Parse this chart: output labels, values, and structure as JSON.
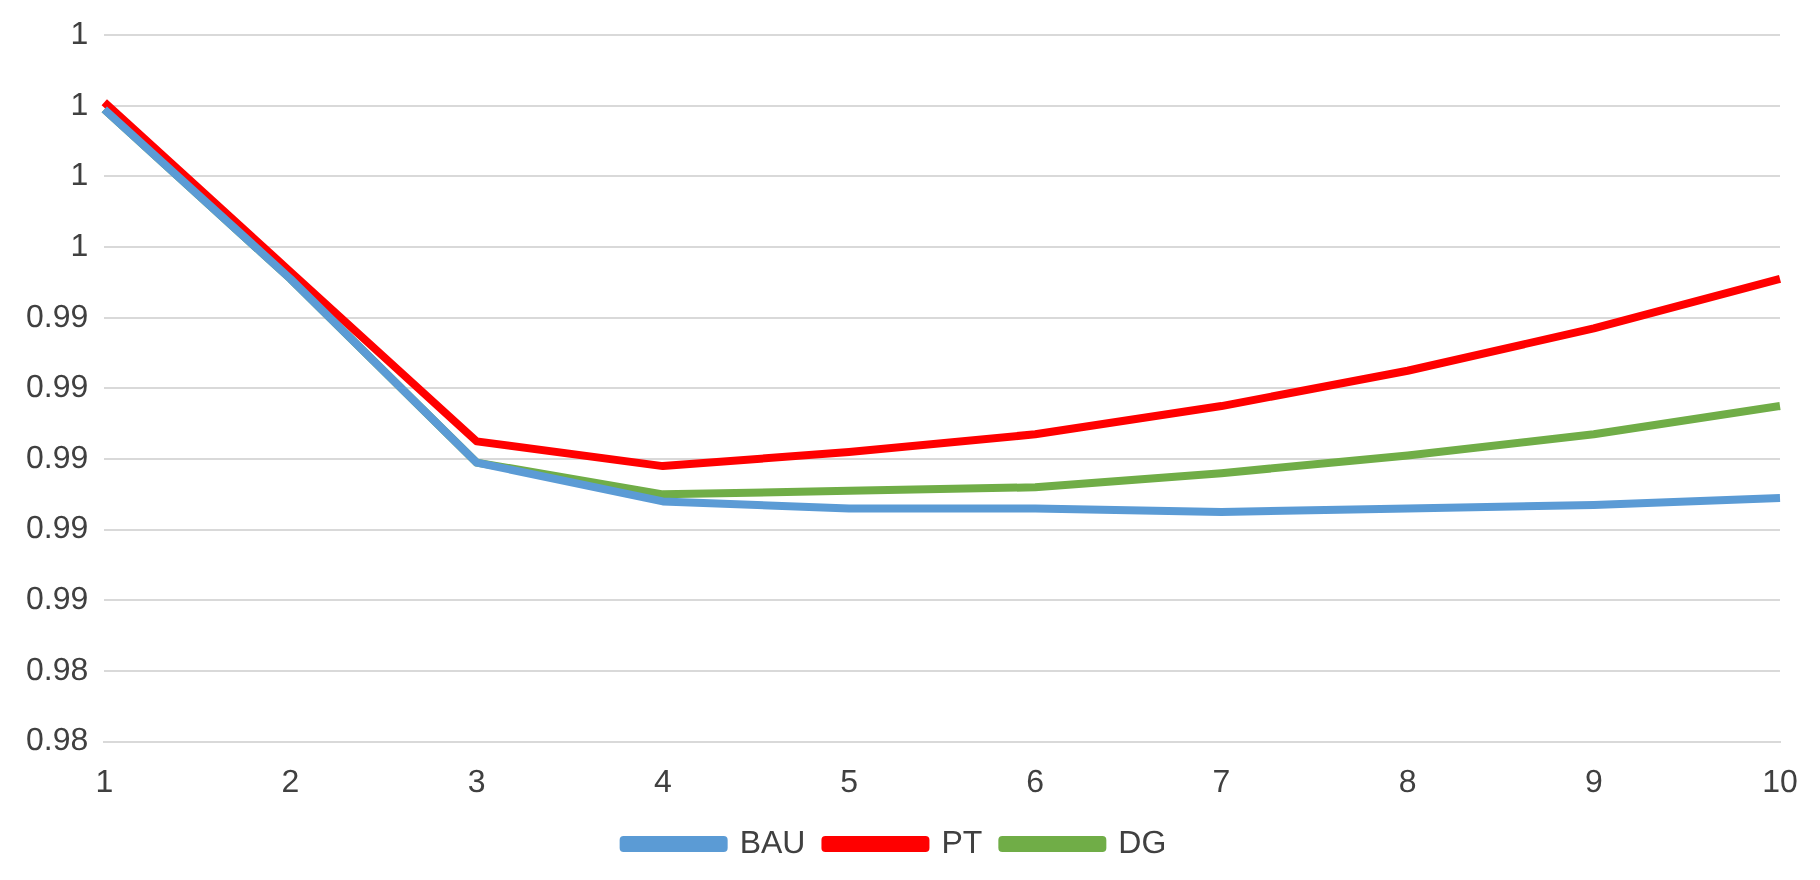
{
  "chart_data": {
    "type": "line",
    "categories": [
      "1",
      "2",
      "3",
      "4",
      "5",
      "6",
      "7",
      "8",
      "9",
      "10"
    ],
    "series": [
      {
        "name": "BAU",
        "color": "#5b9bd5",
        "values": [
          0.9999,
          0.9951,
          0.9899,
          0.9888,
          0.9886,
          0.9886,
          0.9885,
          0.9886,
          0.9887,
          0.9889
        ]
      },
      {
        "name": "PT",
        "color": "#ff0000",
        "values": [
          1.0001,
          0.9953,
          0.9905,
          0.9898,
          0.9902,
          0.9907,
          0.9915,
          0.9925,
          0.9937,
          0.9951
        ]
      },
      {
        "name": "DG",
        "color": "#70ad47",
        "values": [
          0.9999,
          0.9951,
          0.9899,
          0.989,
          0.9891,
          0.9892,
          0.9896,
          0.9901,
          0.9907,
          0.9915
        ]
      }
    ],
    "ylim": [
      0.982,
      1.002
    ],
    "yticks": [
      {
        "value": 0.982,
        "label": "0.98"
      },
      {
        "value": 0.984,
        "label": "0.98"
      },
      {
        "value": 0.986,
        "label": "0.99"
      },
      {
        "value": 0.988,
        "label": "0.99"
      },
      {
        "value": 0.99,
        "label": "0.99"
      },
      {
        "value": 0.992,
        "label": "0.99"
      },
      {
        "value": 0.994,
        "label": "0.99"
      },
      {
        "value": 0.996,
        "label": "1"
      },
      {
        "value": 0.998,
        "label": "1"
      },
      {
        "value": 1,
        "label": "1"
      },
      {
        "value": 1.002,
        "label": "1"
      }
    ],
    "grid": "y",
    "legend": "bottom",
    "marker": "none",
    "line_style": "solid"
  }
}
